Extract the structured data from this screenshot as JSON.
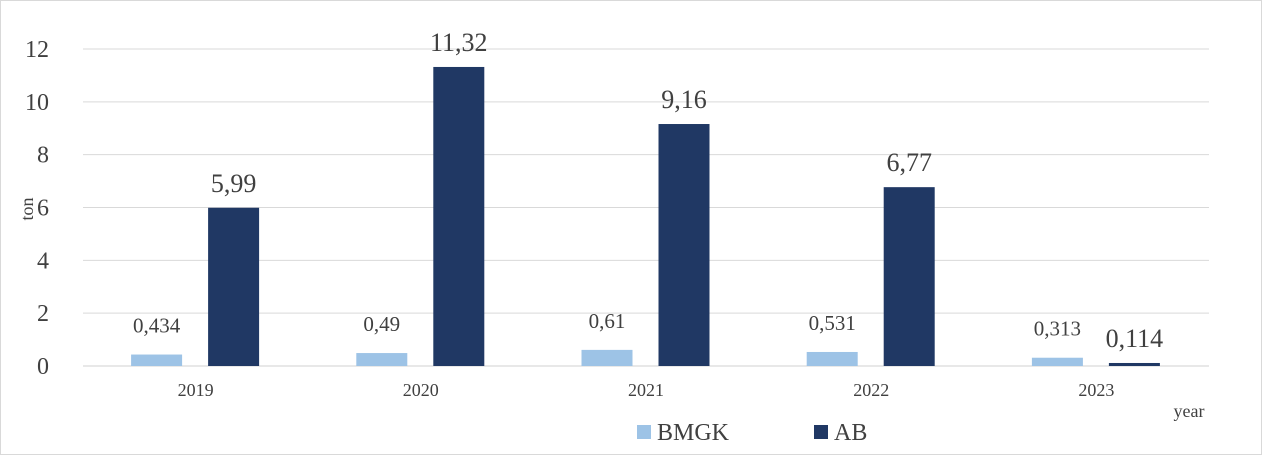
{
  "chart_data": {
    "type": "bar",
    "categories": [
      "2019",
      "2020",
      "2021",
      "2022",
      "2023"
    ],
    "series": [
      {
        "name": "BMGK",
        "color": "#9dc3e6",
        "values": [
          0.434,
          0.49,
          0.61,
          0.531,
          0.313
        ],
        "labels": [
          "0,434",
          "0,49",
          "0,61",
          "0,531",
          "0,313"
        ]
      },
      {
        "name": "AB",
        "color": "#203864",
        "values": [
          5.99,
          11.32,
          9.16,
          6.77,
          0.114
        ],
        "labels": [
          "5,99",
          "11,32",
          "9,16",
          "6,77",
          "0,114"
        ]
      }
    ],
    "ylabel": "ton",
    "xlabel": "year",
    "ylim": [
      0,
      12
    ],
    "yticks": [
      0,
      2,
      4,
      6,
      8,
      10,
      12
    ],
    "grid": true,
    "legend_position": "bottom"
  }
}
